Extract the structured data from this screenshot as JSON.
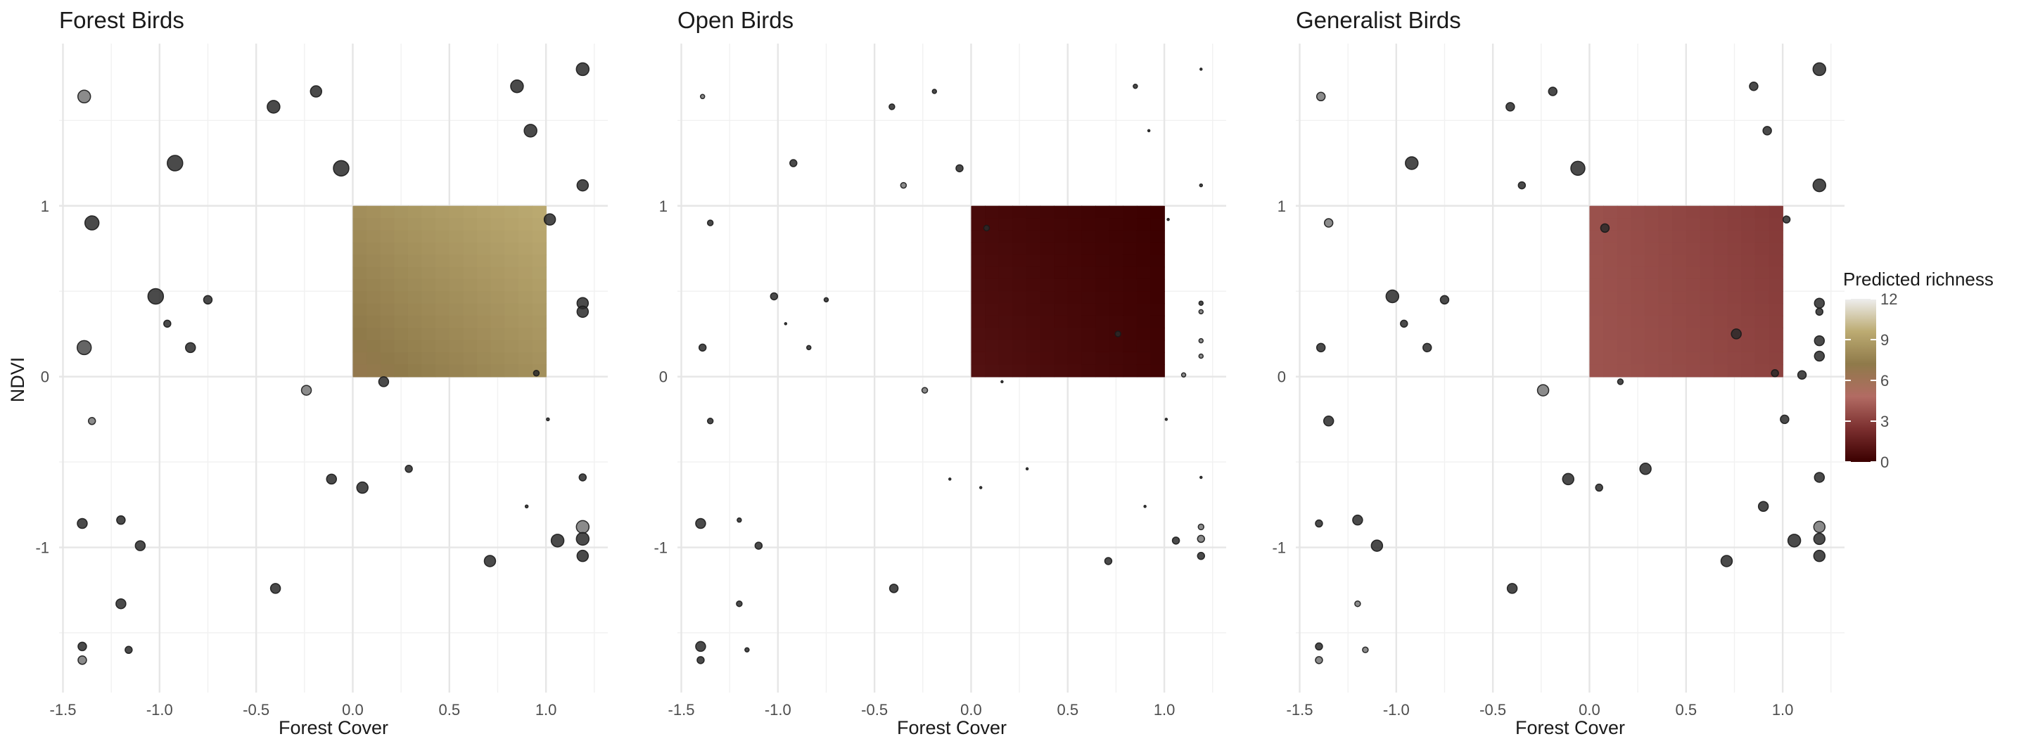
{
  "figure": {
    "legend": {
      "title": "Predicted richness",
      "ticks": [
        "0",
        "3",
        "6",
        "9",
        "12"
      ],
      "min": 0,
      "max": 12
    }
  },
  "colors": {
    "scale": [
      "#3b0000",
      "#7a2e2e",
      "#b26b63",
      "#8f7a4a",
      "#bcab72",
      "#eeeeee"
    ],
    "point": "#1a1a1a",
    "grid": "#e6e6e6"
  },
  "chart_data": [
    {
      "type": "scatter",
      "title": "Forest Birds",
      "xlabel": "Forest Cover",
      "ylabel": "NDVI",
      "xlim": [
        -1.52,
        1.32
      ],
      "ylim": [
        -1.85,
        1.95
      ],
      "xticks": [
        "-1.5",
        "-1.0",
        "-0.5",
        "0.0",
        "0.5",
        "1.0"
      ],
      "yticks": [
        "-1",
        "0",
        "1"
      ],
      "raster": {
        "x": [
          0,
          1
        ],
        "y": [
          0,
          1
        ],
        "corner_values": {
          "x0y0": 6.8,
          "x1y0": 8.3,
          "x0y1": 8.2,
          "x1y1": 9.6
        }
      },
      "points": [
        {
          "x": -1.39,
          "y": 1.64,
          "size": 9,
          "fill": "#777777"
        },
        {
          "x": -0.41,
          "y": 1.58,
          "size": 9,
          "fill": "#2a2a2a"
        },
        {
          "x": -0.19,
          "y": 1.67,
          "size": 8,
          "fill": "#2a2a2a"
        },
        {
          "x": 0.85,
          "y": 1.7,
          "size": 9,
          "fill": "#2a2a2a"
        },
        {
          "x": 1.19,
          "y": 1.8,
          "size": 9,
          "fill": "#2a2a2a"
        },
        {
          "x": 0.92,
          "y": 1.44,
          "size": 9,
          "fill": "#2a2a2a"
        },
        {
          "x": -0.92,
          "y": 1.25,
          "size": 11,
          "fill": "#2a2a2a"
        },
        {
          "x": -0.06,
          "y": 1.22,
          "size": 11,
          "fill": "#2a2a2a"
        },
        {
          "x": 1.19,
          "y": 1.12,
          "size": 8,
          "fill": "#2a2a2a"
        },
        {
          "x": -1.35,
          "y": 0.9,
          "size": 10,
          "fill": "#2a2a2a"
        },
        {
          "x": 1.02,
          "y": 0.92,
          "size": 8,
          "fill": "#2a2a2a"
        },
        {
          "x": -1.02,
          "y": 0.47,
          "size": 11,
          "fill": "#2a2a2a"
        },
        {
          "x": -0.75,
          "y": 0.45,
          "size": 6,
          "fill": "#2a2a2a"
        },
        {
          "x": 1.19,
          "y": 0.43,
          "size": 8,
          "fill": "#2a2a2a"
        },
        {
          "x": 1.19,
          "y": 0.38,
          "size": 8,
          "fill": "#2a2a2a"
        },
        {
          "x": -0.96,
          "y": 0.31,
          "size": 5,
          "fill": "#2a2a2a"
        },
        {
          "x": -1.39,
          "y": 0.17,
          "size": 10,
          "fill": "#4a4a4a"
        },
        {
          "x": -0.84,
          "y": 0.17,
          "size": 7,
          "fill": "#2a2a2a"
        },
        {
          "x": 0.95,
          "y": 0.02,
          "size": 4,
          "fill": "#2a2a2a"
        },
        {
          "x": 0.16,
          "y": -0.03,
          "size": 7,
          "fill": "#2a2a2a"
        },
        {
          "x": -0.24,
          "y": -0.08,
          "size": 7,
          "fill": "#777777"
        },
        {
          "x": -1.35,
          "y": -0.26,
          "size": 5,
          "fill": "#777777"
        },
        {
          "x": 1.01,
          "y": -0.25,
          "size": 2,
          "fill": "#2a2a2a"
        },
        {
          "x": 0.29,
          "y": -0.54,
          "size": 5,
          "fill": "#2a2a2a"
        },
        {
          "x": -0.11,
          "y": -0.6,
          "size": 7,
          "fill": "#2a2a2a"
        },
        {
          "x": 0.05,
          "y": -0.65,
          "size": 8,
          "fill": "#2a2a2a"
        },
        {
          "x": 1.19,
          "y": -0.59,
          "size": 5,
          "fill": "#2a2a2a"
        },
        {
          "x": 0.9,
          "y": -0.76,
          "size": 2,
          "fill": "#2a2a2a"
        },
        {
          "x": -1.4,
          "y": -0.86,
          "size": 7,
          "fill": "#2a2a2a"
        },
        {
          "x": -1.2,
          "y": -0.84,
          "size": 6,
          "fill": "#2a2a2a"
        },
        {
          "x": 1.19,
          "y": -0.88,
          "size": 9,
          "fill": "#777777"
        },
        {
          "x": 1.06,
          "y": -0.96,
          "size": 9,
          "fill": "#2a2a2a"
        },
        {
          "x": 1.19,
          "y": -0.95,
          "size": 9,
          "fill": "#2a2a2a"
        },
        {
          "x": -1.1,
          "y": -0.99,
          "size": 7,
          "fill": "#2a2a2a"
        },
        {
          "x": 1.19,
          "y": -1.05,
          "size": 8,
          "fill": "#2a2a2a"
        },
        {
          "x": 0.71,
          "y": -1.08,
          "size": 8,
          "fill": "#2a2a2a"
        },
        {
          "x": -0.4,
          "y": -1.24,
          "size": 7,
          "fill": "#2a2a2a"
        },
        {
          "x": -1.2,
          "y": -1.33,
          "size": 7,
          "fill": "#2a2a2a"
        },
        {
          "x": -1.4,
          "y": -1.58,
          "size": 6,
          "fill": "#2a2a2a"
        },
        {
          "x": -1.16,
          "y": -1.6,
          "size": 5,
          "fill": "#2a2a2a"
        },
        {
          "x": -1.4,
          "y": -1.66,
          "size": 6,
          "fill": "#777777"
        }
      ]
    },
    {
      "type": "scatter",
      "title": "Open Birds",
      "xlabel": "Forest Cover",
      "ylabel": "",
      "xlim": [
        -1.52,
        1.32
      ],
      "ylim": [
        -1.85,
        1.95
      ],
      "xticks": [
        "-1.5",
        "-1.0",
        "-0.5",
        "0.0",
        "0.5",
        "1.0"
      ],
      "yticks": [
        "-1",
        "0",
        "1"
      ],
      "raster": {
        "x": [
          0,
          1
        ],
        "y": [
          0,
          1
        ],
        "corner_values": {
          "x0y0": 0.9,
          "x1y0": 0.2,
          "x0y1": 0.5,
          "x1y1": 0.0
        }
      },
      "points": [
        {
          "x": -1.39,
          "y": 1.64,
          "size": 3,
          "fill": "#777777"
        },
        {
          "x": -0.41,
          "y": 1.58,
          "size": 4,
          "fill": "#2a2a2a"
        },
        {
          "x": -0.19,
          "y": 1.67,
          "size": 3,
          "fill": "#2a2a2a"
        },
        {
          "x": 0.85,
          "y": 1.7,
          "size": 3,
          "fill": "#2a2a2a"
        },
        {
          "x": 1.19,
          "y": 1.8,
          "size": 1.5,
          "fill": "#2a2a2a"
        },
        {
          "x": 0.92,
          "y": 1.44,
          "size": 1.5,
          "fill": "#2a2a2a"
        },
        {
          "x": -0.92,
          "y": 1.25,
          "size": 5,
          "fill": "#2a2a2a"
        },
        {
          "x": -0.06,
          "y": 1.22,
          "size": 5,
          "fill": "#2a2a2a"
        },
        {
          "x": -0.35,
          "y": 1.12,
          "size": 4,
          "fill": "#777777"
        },
        {
          "x": 1.19,
          "y": 1.12,
          "size": 2,
          "fill": "#2a2a2a"
        },
        {
          "x": -1.35,
          "y": 0.9,
          "size": 4,
          "fill": "#2a2a2a"
        },
        {
          "x": 0.08,
          "y": 0.87,
          "size": 4,
          "fill": "#2a2a2a"
        },
        {
          "x": 1.02,
          "y": 0.92,
          "size": 1.5,
          "fill": "#2a2a2a"
        },
        {
          "x": -1.02,
          "y": 0.47,
          "size": 5,
          "fill": "#2a2a2a"
        },
        {
          "x": -0.75,
          "y": 0.45,
          "size": 3,
          "fill": "#2a2a2a"
        },
        {
          "x": 1.19,
          "y": 0.43,
          "size": 3,
          "fill": "#2a2a2a"
        },
        {
          "x": 1.19,
          "y": 0.38,
          "size": 3,
          "fill": "#777777"
        },
        {
          "x": -0.96,
          "y": 0.31,
          "size": 1.5,
          "fill": "#2a2a2a"
        },
        {
          "x": 0.76,
          "y": 0.25,
          "size": 4,
          "fill": "#2a2a2a"
        },
        {
          "x": 1.19,
          "y": 0.21,
          "size": 3,
          "fill": "#777777"
        },
        {
          "x": -1.39,
          "y": 0.17,
          "size": 5,
          "fill": "#2a2a2a"
        },
        {
          "x": -0.84,
          "y": 0.17,
          "size": 3,
          "fill": "#2a2a2a"
        },
        {
          "x": 1.19,
          "y": 0.12,
          "size": 3,
          "fill": "#777777"
        },
        {
          "x": 1.1,
          "y": 0.01,
          "size": 3,
          "fill": "#777777"
        },
        {
          "x": 0.16,
          "y": -0.03,
          "size": 1.5,
          "fill": "#2a2a2a"
        },
        {
          "x": -0.24,
          "y": -0.08,
          "size": 4,
          "fill": "#777777"
        },
        {
          "x": -1.35,
          "y": -0.26,
          "size": 4,
          "fill": "#2a2a2a"
        },
        {
          "x": 1.01,
          "y": -0.25,
          "size": 1.5,
          "fill": "#2a2a2a"
        },
        {
          "x": 0.29,
          "y": -0.54,
          "size": 1.5,
          "fill": "#2a2a2a"
        },
        {
          "x": -0.11,
          "y": -0.6,
          "size": 1.5,
          "fill": "#2a2a2a"
        },
        {
          "x": 0.05,
          "y": -0.65,
          "size": 1.5,
          "fill": "#2a2a2a"
        },
        {
          "x": 1.19,
          "y": -0.59,
          "size": 1.5,
          "fill": "#2a2a2a"
        },
        {
          "x": 0.9,
          "y": -0.76,
          "size": 1.5,
          "fill": "#2a2a2a"
        },
        {
          "x": -1.4,
          "y": -0.86,
          "size": 7,
          "fill": "#2a2a2a"
        },
        {
          "x": -1.2,
          "y": -0.84,
          "size": 3,
          "fill": "#2a2a2a"
        },
        {
          "x": 1.19,
          "y": -0.88,
          "size": 4,
          "fill": "#777777"
        },
        {
          "x": 1.06,
          "y": -0.96,
          "size": 5,
          "fill": "#2a2a2a"
        },
        {
          "x": 1.19,
          "y": -0.95,
          "size": 5,
          "fill": "#777777"
        },
        {
          "x": -1.1,
          "y": -0.99,
          "size": 5,
          "fill": "#2a2a2a"
        },
        {
          "x": 1.19,
          "y": -1.05,
          "size": 5,
          "fill": "#2a2a2a"
        },
        {
          "x": 0.71,
          "y": -1.08,
          "size": 5,
          "fill": "#2a2a2a"
        },
        {
          "x": -0.4,
          "y": -1.24,
          "size": 6,
          "fill": "#2a2a2a"
        },
        {
          "x": -1.2,
          "y": -1.33,
          "size": 4,
          "fill": "#2a2a2a"
        },
        {
          "x": -1.4,
          "y": -1.58,
          "size": 7,
          "fill": "#2a2a2a"
        },
        {
          "x": -1.16,
          "y": -1.6,
          "size": 3,
          "fill": "#2a2a2a"
        },
        {
          "x": -1.4,
          "y": -1.66,
          "size": 5,
          "fill": "#2a2a2a"
        }
      ]
    },
    {
      "type": "scatter",
      "title": "Generalist Birds",
      "xlabel": "Forest Cover",
      "ylabel": "",
      "xlim": [
        -1.52,
        1.32
      ],
      "ylim": [
        -1.85,
        1.95
      ],
      "xticks": [
        "-1.5",
        "-1.0",
        "-0.5",
        "0.0",
        "0.5",
        "1.0"
      ],
      "yticks": [
        "-1",
        "0",
        "1"
      ],
      "raster": {
        "x": [
          0,
          1
        ],
        "y": [
          0,
          1
        ],
        "corner_values": {
          "x0y0": 3.9,
          "x1y0": 3.2,
          "x0y1": 3.8,
          "x1y1": 2.8
        }
      },
      "points": [
        {
          "x": -1.39,
          "y": 1.64,
          "size": 6,
          "fill": "#777777"
        },
        {
          "x": -0.41,
          "y": 1.58,
          "size": 6,
          "fill": "#2a2a2a"
        },
        {
          "x": -0.19,
          "y": 1.67,
          "size": 6,
          "fill": "#2a2a2a"
        },
        {
          "x": 0.85,
          "y": 1.7,
          "size": 6,
          "fill": "#2a2a2a"
        },
        {
          "x": 1.19,
          "y": 1.8,
          "size": 9,
          "fill": "#2a2a2a"
        },
        {
          "x": 0.92,
          "y": 1.44,
          "size": 6,
          "fill": "#2a2a2a"
        },
        {
          "x": -0.92,
          "y": 1.25,
          "size": 9,
          "fill": "#2a2a2a"
        },
        {
          "x": -0.06,
          "y": 1.22,
          "size": 10,
          "fill": "#2a2a2a"
        },
        {
          "x": -0.35,
          "y": 1.12,
          "size": 5,
          "fill": "#2a2a2a"
        },
        {
          "x": 1.19,
          "y": 1.12,
          "size": 9,
          "fill": "#2a2a2a"
        },
        {
          "x": -1.35,
          "y": 0.9,
          "size": 6,
          "fill": "#777777"
        },
        {
          "x": 0.08,
          "y": 0.87,
          "size": 6,
          "fill": "#2a2a2a"
        },
        {
          "x": 1.02,
          "y": 0.92,
          "size": 5,
          "fill": "#2a2a2a"
        },
        {
          "x": -1.02,
          "y": 0.47,
          "size": 9,
          "fill": "#2a2a2a"
        },
        {
          "x": -0.75,
          "y": 0.45,
          "size": 6,
          "fill": "#2a2a2a"
        },
        {
          "x": 1.19,
          "y": 0.43,
          "size": 7,
          "fill": "#2a2a2a"
        },
        {
          "x": 1.19,
          "y": 0.38,
          "size": 5,
          "fill": "#2a2a2a"
        },
        {
          "x": -0.96,
          "y": 0.31,
          "size": 5,
          "fill": "#2a2a2a"
        },
        {
          "x": 0.76,
          "y": 0.25,
          "size": 7,
          "fill": "#2a2a2a"
        },
        {
          "x": 1.19,
          "y": 0.21,
          "size": 7,
          "fill": "#2a2a2a"
        },
        {
          "x": -1.39,
          "y": 0.17,
          "size": 6,
          "fill": "#2a2a2a"
        },
        {
          "x": -0.84,
          "y": 0.17,
          "size": 6,
          "fill": "#2a2a2a"
        },
        {
          "x": 1.19,
          "y": 0.12,
          "size": 7,
          "fill": "#2a2a2a"
        },
        {
          "x": 0.96,
          "y": 0.02,
          "size": 5,
          "fill": "#2a2a2a"
        },
        {
          "x": 1.1,
          "y": 0.01,
          "size": 6,
          "fill": "#2a2a2a"
        },
        {
          "x": 0.16,
          "y": -0.03,
          "size": 4,
          "fill": "#2a2a2a"
        },
        {
          "x": -0.24,
          "y": -0.08,
          "size": 8,
          "fill": "#777777"
        },
        {
          "x": -1.35,
          "y": -0.26,
          "size": 7,
          "fill": "#2a2a2a"
        },
        {
          "x": 1.01,
          "y": -0.25,
          "size": 6,
          "fill": "#2a2a2a"
        },
        {
          "x": 0.29,
          "y": -0.54,
          "size": 8,
          "fill": "#2a2a2a"
        },
        {
          "x": -0.11,
          "y": -0.6,
          "size": 8,
          "fill": "#2a2a2a"
        },
        {
          "x": 0.05,
          "y": -0.65,
          "size": 5,
          "fill": "#2a2a2a"
        },
        {
          "x": 1.19,
          "y": -0.59,
          "size": 7,
          "fill": "#2a2a2a"
        },
        {
          "x": 0.9,
          "y": -0.76,
          "size": 7,
          "fill": "#2a2a2a"
        },
        {
          "x": -1.4,
          "y": -0.86,
          "size": 5,
          "fill": "#2a2a2a"
        },
        {
          "x": -1.2,
          "y": -0.84,
          "size": 7,
          "fill": "#2a2a2a"
        },
        {
          "x": 1.19,
          "y": -0.88,
          "size": 8,
          "fill": "#777777"
        },
        {
          "x": 1.06,
          "y": -0.96,
          "size": 9,
          "fill": "#2a2a2a"
        },
        {
          "x": 1.19,
          "y": -0.95,
          "size": 8,
          "fill": "#2a2a2a"
        },
        {
          "x": -1.1,
          "y": -0.99,
          "size": 8,
          "fill": "#2a2a2a"
        },
        {
          "x": 1.19,
          "y": -1.05,
          "size": 8,
          "fill": "#2a2a2a"
        },
        {
          "x": 0.71,
          "y": -1.08,
          "size": 8,
          "fill": "#2a2a2a"
        },
        {
          "x": -0.4,
          "y": -1.24,
          "size": 7,
          "fill": "#2a2a2a"
        },
        {
          "x": -1.2,
          "y": -1.33,
          "size": 4,
          "fill": "#777777"
        },
        {
          "x": -1.4,
          "y": -1.58,
          "size": 5,
          "fill": "#2a2a2a"
        },
        {
          "x": -1.16,
          "y": -1.6,
          "size": 4,
          "fill": "#777777"
        },
        {
          "x": -1.4,
          "y": -1.66,
          "size": 5,
          "fill": "#777777"
        }
      ]
    }
  ]
}
